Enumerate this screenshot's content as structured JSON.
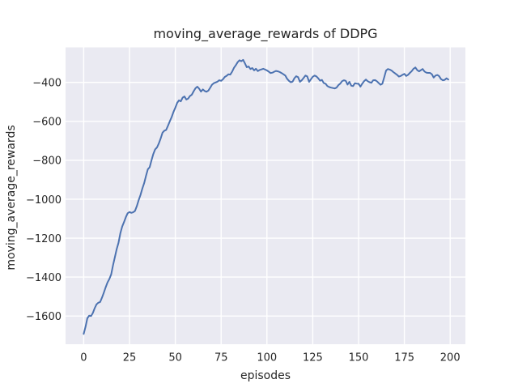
{
  "chart_data": {
    "type": "line",
    "title": "moving_average_rewards of DDPG",
    "xlabel": "episodes",
    "ylabel": "moving_average_rewards",
    "xlim": [
      -9.9,
      208.3
    ],
    "ylim": [
      -1745,
      -220
    ],
    "xticks": [
      0,
      25,
      50,
      75,
      100,
      125,
      150,
      175,
      200
    ],
    "xticklabels": [
      "0",
      "25",
      "50",
      "75",
      "100",
      "125",
      "150",
      "175",
      "200"
    ],
    "yticks": [
      -400,
      -600,
      -800,
      -1000,
      -1200,
      -1400,
      -1600
    ],
    "yticklabels": [
      "−400",
      "−600",
      "−800",
      "−1000",
      "−1200",
      "−1400",
      "−1600"
    ],
    "grid": true,
    "legend": false,
    "background": "#EAEAF2",
    "grid_color": "#FFFFFF",
    "text_color": "#262626",
    "series": [
      {
        "name": "moving_average_rewards",
        "color": "#4C72B0",
        "x_start": 0,
        "x_step": 1,
        "values": [
          -1692,
          -1655,
          -1612,
          -1598,
          -1600,
          -1585,
          -1560,
          -1540,
          -1532,
          -1528,
          -1505,
          -1480,
          -1452,
          -1428,
          -1410,
          -1386,
          -1340,
          -1298,
          -1256,
          -1224,
          -1175,
          -1140,
          -1118,
          -1092,
          -1072,
          -1066,
          -1070,
          -1067,
          -1060,
          -1035,
          -1005,
          -978,
          -945,
          -918,
          -880,
          -846,
          -836,
          -800,
          -768,
          -744,
          -734,
          -714,
          -688,
          -658,
          -648,
          -644,
          -622,
          -600,
          -578,
          -552,
          -530,
          -505,
          -492,
          -497,
          -478,
          -472,
          -488,
          -483,
          -470,
          -463,
          -445,
          -430,
          -422,
          -432,
          -447,
          -436,
          -444,
          -448,
          -442,
          -428,
          -412,
          -404,
          -400,
          -396,
          -389,
          -392,
          -384,
          -372,
          -366,
          -358,
          -360,
          -345,
          -325,
          -312,
          -296,
          -286,
          -291,
          -284,
          -302,
          -322,
          -318,
          -331,
          -326,
          -338,
          -330,
          -342,
          -336,
          -333,
          -330,
          -334,
          -338,
          -345,
          -352,
          -350,
          -345,
          -341,
          -343,
          -347,
          -352,
          -358,
          -365,
          -381,
          -392,
          -399,
          -396,
          -378,
          -368,
          -373,
          -397,
          -389,
          -377,
          -365,
          -369,
          -397,
          -384,
          -371,
          -365,
          -369,
          -379,
          -391,
          -387,
          -403,
          -407,
          -419,
          -424,
          -427,
          -429,
          -431,
          -427,
          -414,
          -406,
          -394,
          -389,
          -392,
          -411,
          -397,
          -417,
          -419,
          -404,
          -406,
          -407,
          -422,
          -407,
          -394,
          -385,
          -394,
          -399,
          -402,
          -389,
          -388,
          -394,
          -403,
          -412,
          -407,
          -374,
          -339,
          -331,
          -334,
          -339,
          -347,
          -354,
          -361,
          -370,
          -367,
          -361,
          -356,
          -367,
          -361,
          -351,
          -342,
          -330,
          -323,
          -337,
          -343,
          -337,
          -331,
          -344,
          -350,
          -351,
          -351,
          -358,
          -375,
          -365,
          -362,
          -368,
          -383,
          -389,
          -387,
          -379,
          -385
        ]
      }
    ]
  }
}
